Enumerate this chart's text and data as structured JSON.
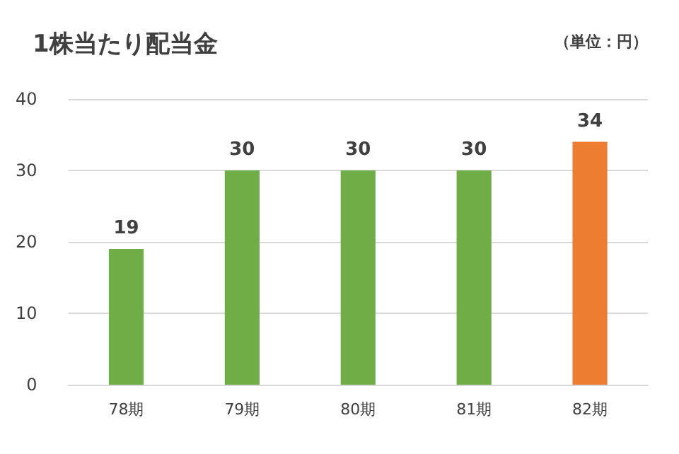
{
  "chart_data": {
    "type": "bar",
    "title": "1株当たり配当金",
    "annotations": [
      "（単位：円）"
    ],
    "categories": [
      "78期",
      "79期",
      "80期",
      "81期",
      "82期"
    ],
    "values": [
      19,
      30,
      30,
      30,
      34
    ],
    "colors": [
      "#70ad47",
      "#70ad47",
      "#70ad47",
      "#70ad47",
      "#ed7d31"
    ],
    "ylim": [
      0,
      40
    ],
    "yticks": [
      0,
      10,
      20,
      30,
      40
    ],
    "grid": "y",
    "data_labels": true
  }
}
